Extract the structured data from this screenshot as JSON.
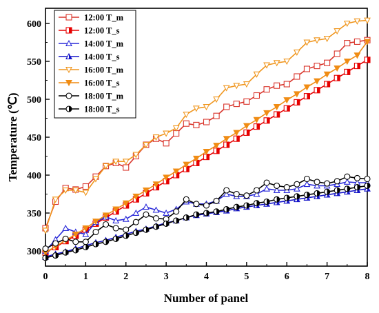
{
  "chart_data": {
    "type": "line",
    "title": "",
    "xlabel": "Number of panel",
    "ylabel": "Temperature (℃)",
    "xlim": [
      0,
      8
    ],
    "ylim": [
      280,
      620
    ],
    "xticks": [
      0,
      1,
      2,
      3,
      4,
      5,
      6,
      7,
      8
    ],
    "yticks": [
      300,
      350,
      400,
      450,
      500,
      550,
      600
    ],
    "grid": false,
    "legend_position": "top-left",
    "series": [
      {
        "name": "12:00 T_m",
        "color": "#d9342b",
        "marker": "square",
        "fill": "none",
        "x": [
          0,
          0.25,
          0.5,
          0.75,
          1,
          1.25,
          1.5,
          1.75,
          2,
          2.25,
          2.5,
          2.75,
          3,
          3.25,
          3.5,
          3.75,
          4,
          4.25,
          4.5,
          4.75,
          5,
          5.25,
          5.5,
          5.75,
          6,
          6.25,
          6.5,
          6.75,
          7,
          7.25,
          7.5,
          7.75,
          8
        ],
        "values": [
          330,
          365,
          383,
          381,
          385,
          398,
          412,
          416,
          410,
          425,
          440,
          448,
          442,
          455,
          468,
          466,
          470,
          478,
          490,
          494,
          497,
          505,
          513,
          518,
          520,
          530,
          540,
          544,
          548,
          560,
          574,
          576,
          578
        ]
      },
      {
        "name": "12:00 T_s",
        "color": "#e60000",
        "marker": "square-half",
        "fill": "half",
        "x": [
          0,
          0.25,
          0.5,
          0.75,
          1,
          1.25,
          1.5,
          1.75,
          2,
          2.25,
          2.5,
          2.75,
          3,
          3.25,
          3.5,
          3.75,
          4,
          4.25,
          4.5,
          4.75,
          5,
          5.25,
          5.5,
          5.75,
          6,
          6.25,
          6.5,
          6.75,
          7,
          7.25,
          7.5,
          7.75,
          8
        ],
        "values": [
          298,
          305,
          313,
          320,
          328,
          336,
          344,
          352,
          360,
          368,
          376,
          384,
          392,
          400,
          408,
          416,
          424,
          432,
          440,
          448,
          456,
          464,
          472,
          480,
          488,
          496,
          504,
          512,
          520,
          528,
          536,
          544,
          552
        ]
      },
      {
        "name": "14:00 T_m",
        "color": "#2a2ad9",
        "marker": "triangle",
        "fill": "none",
        "x": [
          0,
          0.25,
          0.5,
          0.75,
          1,
          1.25,
          1.5,
          1.75,
          2,
          2.25,
          2.5,
          2.75,
          3,
          3.25,
          3.5,
          3.75,
          4,
          4.25,
          4.5,
          4.75,
          5,
          5.25,
          5.5,
          5.75,
          6,
          6.25,
          6.5,
          6.75,
          7,
          7.25,
          7.5,
          7.75,
          8
        ],
        "values": [
          300,
          315,
          330,
          325,
          322,
          338,
          345,
          340,
          342,
          350,
          358,
          354,
          350,
          355,
          365,
          362,
          362,
          366,
          375,
          372,
          372,
          375,
          382,
          380,
          380,
          382,
          388,
          386,
          386,
          388,
          391,
          390,
          390
        ]
      },
      {
        "name": "14:00 T_s",
        "color": "#1414c8",
        "marker": "triangle-half",
        "fill": "half",
        "x": [
          0,
          0.25,
          0.5,
          0.75,
          1,
          1.25,
          1.5,
          1.75,
          2,
          2.25,
          2.5,
          2.75,
          3,
          3.25,
          3.5,
          3.75,
          4,
          4.25,
          4.5,
          4.75,
          5,
          5.25,
          5.5,
          5.75,
          6,
          6.25,
          6.5,
          6.75,
          7,
          7.25,
          7.5,
          7.75,
          8
        ],
        "values": [
          292,
          296,
          299,
          303,
          307,
          311,
          314,
          318,
          322,
          326,
          329,
          333,
          337,
          340,
          344,
          347,
          349,
          351,
          353,
          356,
          358,
          360,
          362,
          364,
          366,
          368,
          370,
          372,
          374,
          376,
          378,
          380,
          382
        ]
      },
      {
        "name": "16:00 T_m",
        "color": "#f0961e",
        "marker": "triangle-down",
        "fill": "none",
        "x": [
          0,
          0.25,
          0.5,
          0.75,
          1,
          1.25,
          1.5,
          1.75,
          2,
          2.25,
          2.5,
          2.75,
          3,
          3.25,
          3.5,
          3.75,
          4,
          4.25,
          4.5,
          4.75,
          5,
          5.25,
          5.5,
          5.75,
          6,
          6.25,
          6.5,
          6.75,
          7,
          7.25,
          7.5,
          7.75,
          8
        ],
        "values": [
          327,
          368,
          380,
          380,
          377,
          395,
          412,
          418,
          418,
          427,
          440,
          450,
          455,
          462,
          480,
          488,
          490,
          500,
          515,
          518,
          520,
          533,
          545,
          548,
          550,
          562,
          575,
          578,
          580,
          590,
          600,
          603,
          604
        ]
      },
      {
        "name": "16:00 T_s",
        "color": "#f08c14",
        "marker": "triangle-down",
        "fill": "filled",
        "x": [
          0,
          0.25,
          0.5,
          0.75,
          1,
          1.25,
          1.5,
          1.75,
          2,
          2.25,
          2.5,
          2.75,
          3,
          3.25,
          3.5,
          3.75,
          4,
          4.25,
          4.5,
          4.75,
          5,
          5.25,
          5.5,
          5.75,
          6,
          6.25,
          6.5,
          6.75,
          7,
          7.25,
          7.5,
          7.75,
          8
        ],
        "values": [
          298,
          306,
          314,
          322,
          330,
          339,
          347,
          355,
          363,
          372,
          380,
          388,
          397,
          405,
          414,
          422,
          431,
          439,
          448,
          456,
          465,
          473,
          482,
          490,
          499,
          507,
          516,
          524,
          533,
          541,
          550,
          558,
          576
        ]
      },
      {
        "name": "18:00 T_m",
        "color": "#000000",
        "marker": "circle",
        "fill": "none",
        "x": [
          0,
          0.25,
          0.5,
          0.75,
          1,
          1.25,
          1.5,
          1.75,
          2,
          2.25,
          2.5,
          2.75,
          3,
          3.25,
          3.5,
          3.75,
          4,
          4.25,
          4.5,
          4.75,
          5,
          5.25,
          5.5,
          5.75,
          6,
          6.25,
          6.5,
          6.75,
          7,
          7.25,
          7.5,
          7.75,
          8
        ],
        "values": [
          303,
          310,
          316,
          312,
          312,
          325,
          335,
          330,
          328,
          338,
          348,
          343,
          342,
          352,
          368,
          362,
          360,
          366,
          380,
          375,
          373,
          380,
          390,
          386,
          384,
          388,
          395,
          391,
          389,
          392,
          398,
          396,
          395
        ]
      },
      {
        "name": "18:00 T_s",
        "color": "#000000",
        "marker": "circle-half",
        "fill": "half",
        "x": [
          0,
          0.25,
          0.5,
          0.75,
          1,
          1.25,
          1.5,
          1.75,
          2,
          2.25,
          2.5,
          2.75,
          3,
          3.25,
          3.5,
          3.75,
          4,
          4.25,
          4.5,
          4.75,
          5,
          5.25,
          5.5,
          5.75,
          6,
          6.25,
          6.5,
          6.75,
          7,
          7.25,
          7.5,
          7.75,
          8
        ],
        "values": [
          291,
          294,
          298,
          301,
          305,
          309,
          312,
          316,
          320,
          324,
          328,
          332,
          336,
          340,
          344,
          348,
          350,
          352,
          355,
          358,
          360,
          363,
          365,
          368,
          370,
          372,
          374,
          376,
          378,
          380,
          382,
          384,
          386
        ]
      }
    ]
  }
}
